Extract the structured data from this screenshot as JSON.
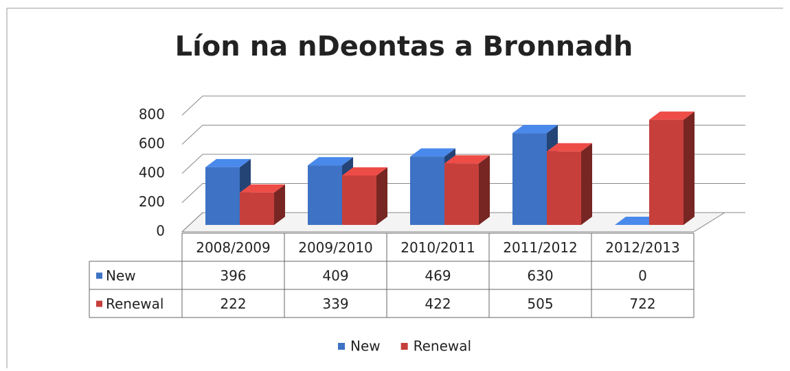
{
  "chart_data": {
    "type": "bar3d",
    "title": "Líon na nDeontas a Bronnadh",
    "categories": [
      "2008/2009",
      "2009/2010",
      "2010/2011",
      "2011/2012",
      "2012/2013"
    ],
    "series": [
      {
        "name": "New",
        "color": "#3d72c4",
        "values": [
          396,
          409,
          469,
          630,
          0
        ]
      },
      {
        "name": "Renewal",
        "color": "#c63f3b",
        "values": [
          222,
          339,
          422,
          505,
          722
        ]
      }
    ],
    "ylim": [
      0,
      800
    ],
    "yticks": [
      0,
      200,
      400,
      600,
      800
    ],
    "grid": true,
    "legend": "bottom"
  }
}
